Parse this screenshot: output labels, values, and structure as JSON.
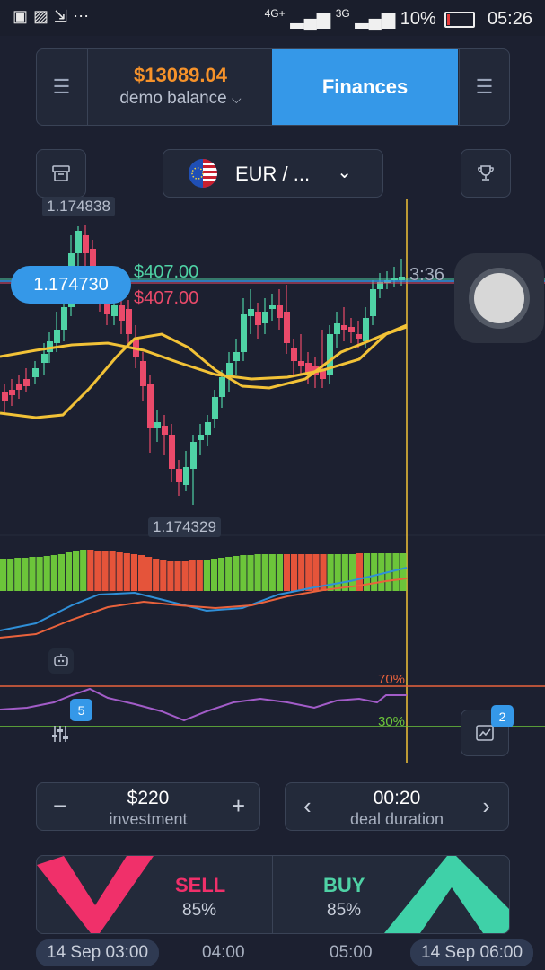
{
  "status_bar": {
    "left_icons": [
      "notification-icon",
      "image-icon",
      "cast-icon",
      "more-dots-icon"
    ],
    "network1": "4G+",
    "network2": "3G",
    "battery_percent": "10%",
    "time": "05:26"
  },
  "header": {
    "balance_amount": "$13089.04",
    "balance_label": "demo balance",
    "finances_label": "Finances"
  },
  "asset": {
    "pair_label": "EUR / ...",
    "flag_icon": "eu-us-flag-icon"
  },
  "chart": {
    "high_label": "1.174838",
    "low_label": "1.174329",
    "current_price": "1.174730",
    "up_payout": "$407.00",
    "down_payout": "$407.00",
    "countdown": "3:36",
    "rsi_upper": "70%",
    "rsi_lower": "30%",
    "indicator_badge": "5",
    "drawings_badge": "2",
    "colors": {
      "bull": "#4fd2a5",
      "bear": "#ea4a6a",
      "ma": "#f2c237",
      "histo_up": "#6cc53a",
      "histo_down": "#e5543a",
      "macd": "#2f8fd8",
      "signal": "#e9623c",
      "rsi": "#a25cc8"
    }
  },
  "controls": {
    "investment_value": "$220",
    "investment_label": "investment",
    "minus": "−",
    "plus": "+",
    "duration_value": "00:20",
    "duration_label": "deal duration",
    "prev": "‹",
    "next": "›"
  },
  "trade": {
    "sell_label": "SELL",
    "sell_pct": "85%",
    "buy_label": "BUY",
    "buy_pct": "85%"
  },
  "timeline": {
    "t1": "14 Sep 03:00",
    "t2": "04:00",
    "t3": "05:00",
    "t4": "14 Sep 06:00"
  }
}
